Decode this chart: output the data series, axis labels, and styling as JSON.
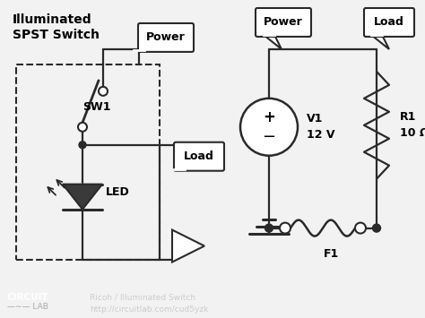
{
  "bg_color": "#f2f2f2",
  "title": "Illuminated\nSPST Switch",
  "footer_bg": "#1a1a1a",
  "footer_text2": "Ricoh / Illuminated Switch\nhttp://circuitlab.com/cud5yzk",
  "line_color": "#2a2a2a",
  "fill_color": "#3a3a3a",
  "power_label": "Power",
  "load_label": "Load",
  "led_label": "LED",
  "sw1_label": "SW1",
  "v1_label": "V1\n12 V",
  "r1_label": "R1\n10 Ω",
  "f1_label": "F1"
}
